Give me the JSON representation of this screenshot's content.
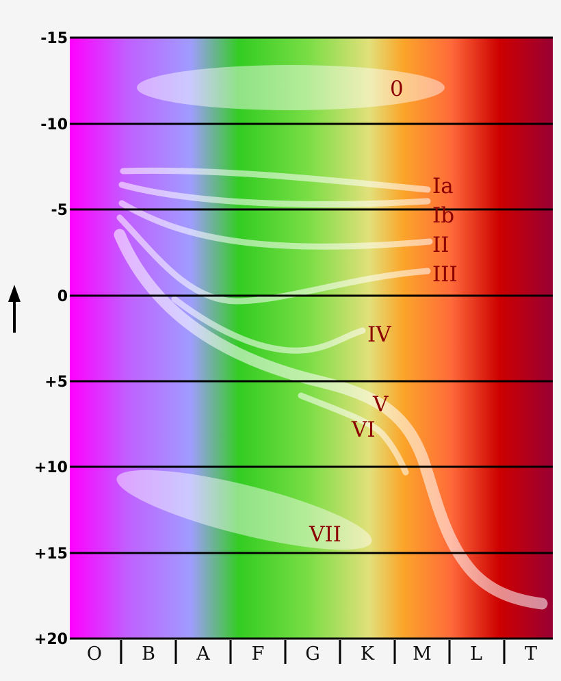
{
  "diagram": {
    "y_axis": {
      "ticks": [
        "-15",
        "-10",
        "-5",
        "0",
        "+5",
        "+10",
        "+15",
        "+20"
      ],
      "arrow": "up-arrow"
    },
    "x_axis": {
      "spectral_classes": [
        "O",
        "B",
        "A",
        "F",
        "G",
        "K",
        "M",
        "L",
        "T"
      ]
    },
    "luminosity_classes": [
      {
        "id": "0",
        "label": "0"
      },
      {
        "id": "Ia",
        "label": "Ia"
      },
      {
        "id": "Ib",
        "label": "Ib"
      },
      {
        "id": "II",
        "label": "II"
      },
      {
        "id": "III",
        "label": "III"
      },
      {
        "id": "IV",
        "label": "IV"
      },
      {
        "id": "V",
        "label": "V"
      },
      {
        "id": "VI",
        "label": "VI"
      },
      {
        "id": "VII",
        "label": "VII"
      }
    ],
    "colors": {
      "spectrum": [
        "#ff00ff",
        "#c060ff",
        "#a09cff",
        "#33cc22",
        "#77dd44",
        "#e2e07a",
        "#fba52a",
        "#ff6a3a",
        "#cc0000",
        "#990033"
      ],
      "band": "#ffffff",
      "label": "#8b0000",
      "grid": "#000000"
    }
  }
}
